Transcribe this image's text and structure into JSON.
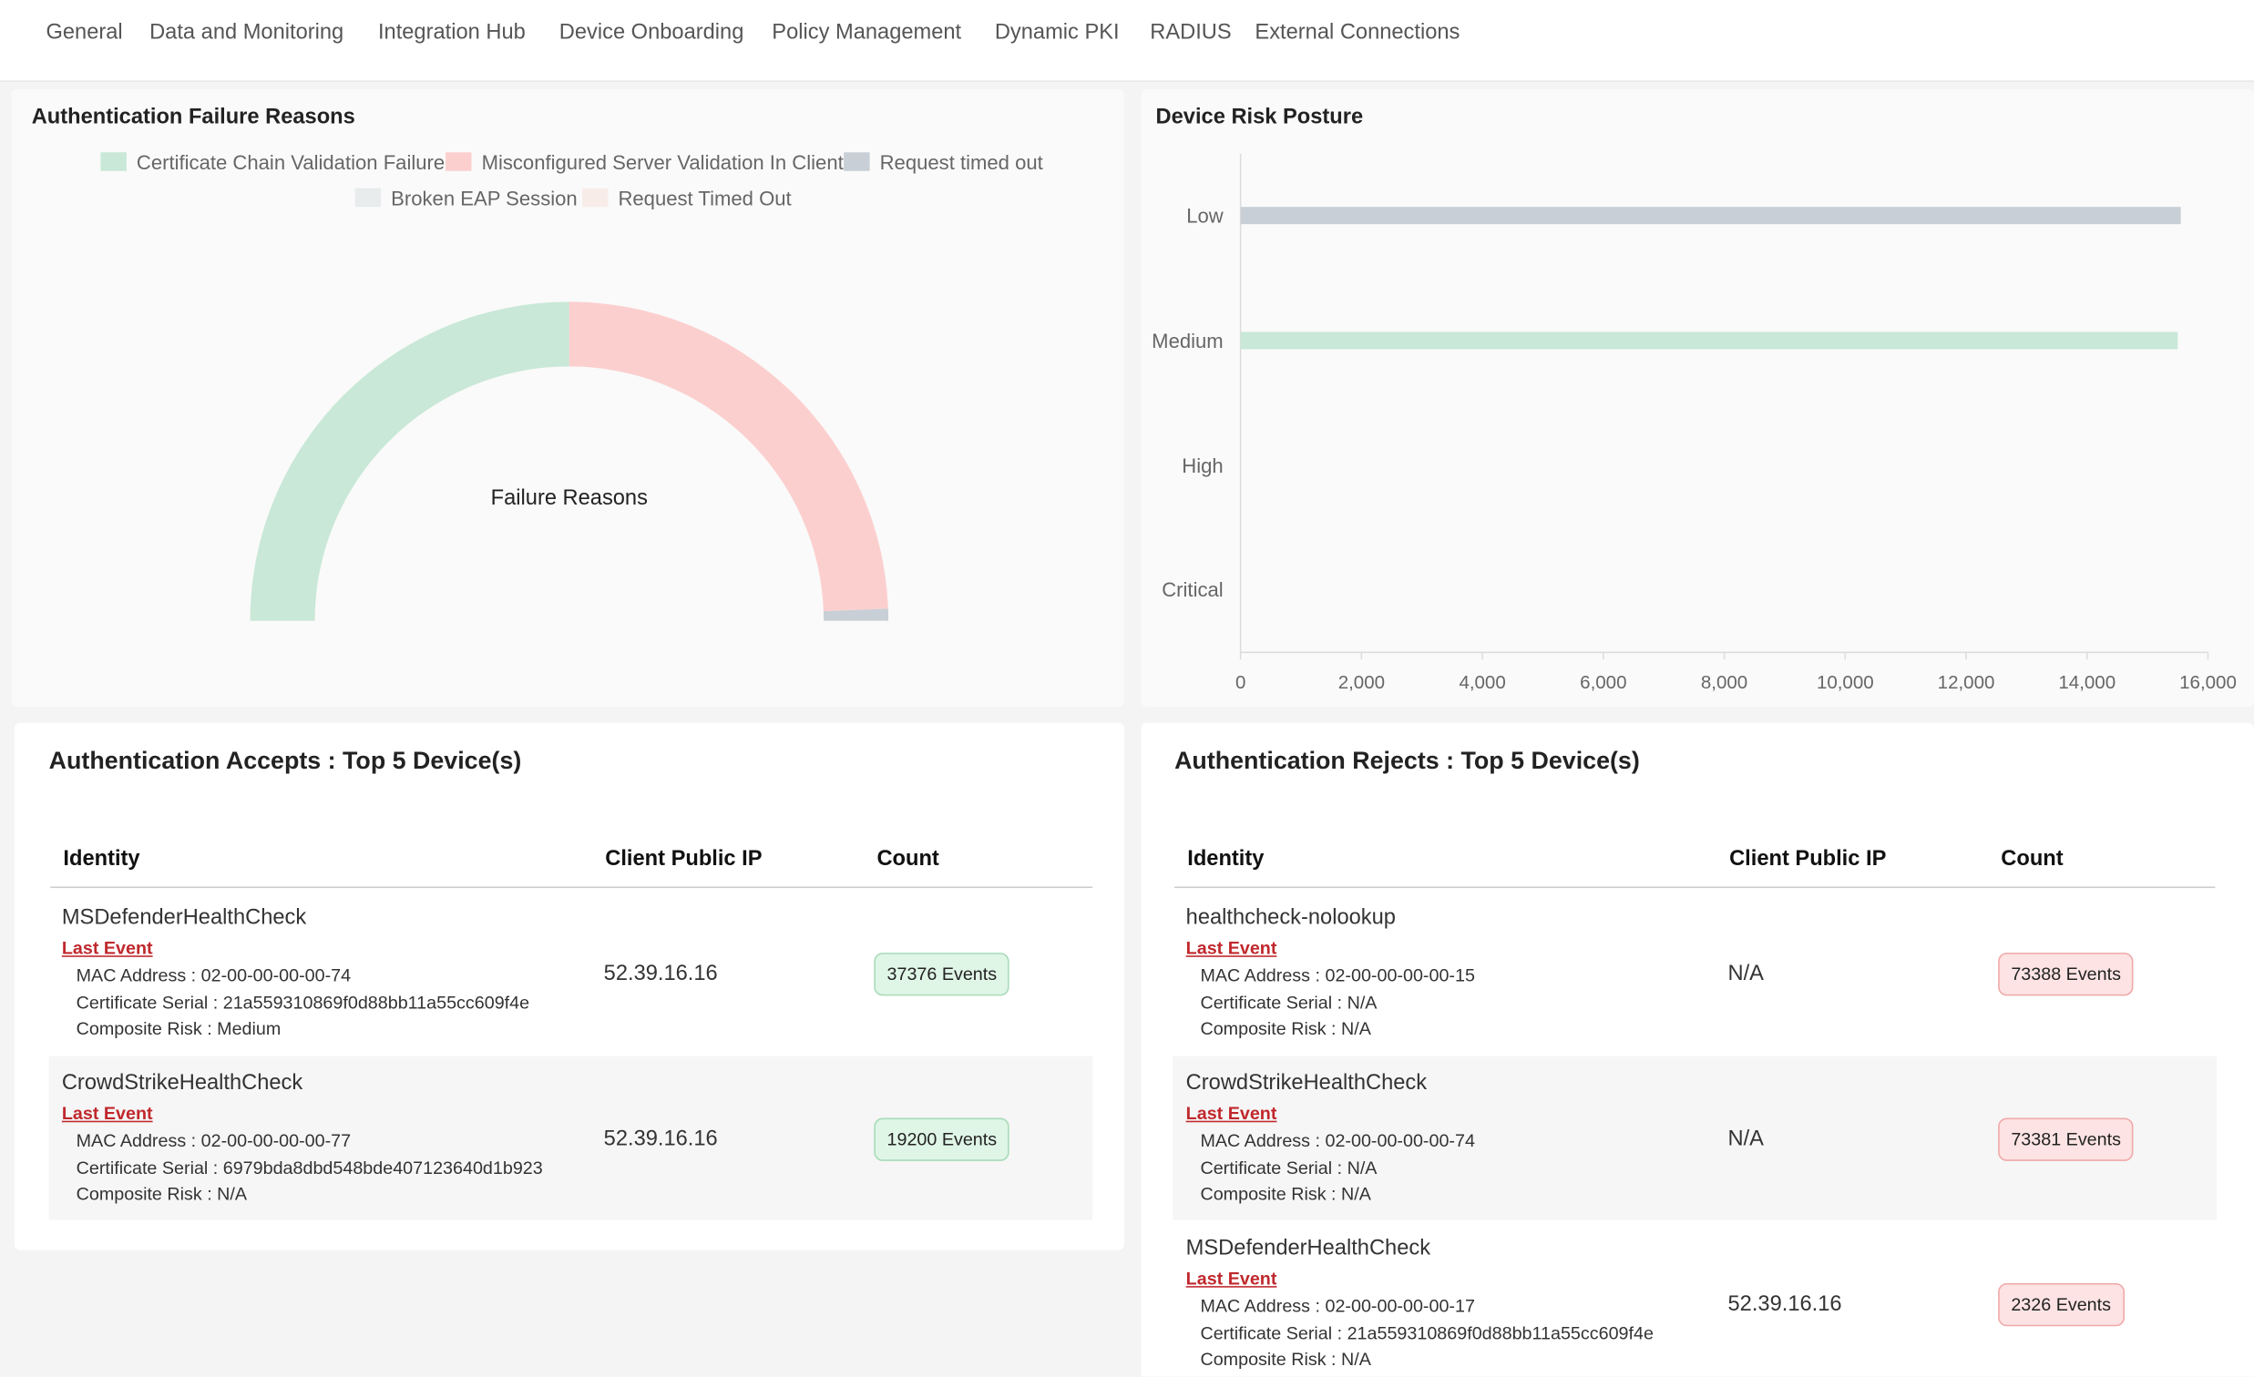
{
  "nav": {
    "tabs": [
      "General",
      "Data and Monitoring",
      "Integration Hub",
      "Device Onboarding",
      "Policy Management",
      "Dynamic PKI",
      "RADIUS",
      "External Connections"
    ]
  },
  "charts": [
    {
      "type": "donut",
      "title": "Authentication Failure Reasons",
      "center_label": "Failure Reasons",
      "categories": [
        "Certificate Chain Validation Failure",
        "Misconfigured Server Validation In Client",
        "Request timed out",
        "Broken EAP Session",
        "Request Timed Out"
      ],
      "values": [
        50,
        48.8,
        1.2,
        0,
        0
      ],
      "colors": [
        "#c9e8d7",
        "#fccfcf",
        "#c8cfd6",
        "#e9ecec",
        "#f8ece9"
      ]
    },
    {
      "type": "hbar",
      "title": "Device Risk Posture",
      "categories": [
        "Low",
        "Medium",
        "High",
        "Critical"
      ],
      "values": [
        15550,
        15500,
        0,
        0
      ],
      "colors": [
        "#c8cfd6",
        "#c9e8d7",
        "#c8cfd6",
        "#c8cfd6"
      ],
      "xlim": [
        0,
        16000
      ],
      "xticks": [
        0,
        {
          "value": 2000,
          "label": "2,000"
        },
        {
          "value": 4000,
          "label": "4,000"
        },
        {
          "value": 6000,
          "label": "6,000"
        },
        {
          "value": 8000,
          "label": "8,000"
        },
        {
          "value": 10000,
          "label": "10,000"
        },
        {
          "value": 12000,
          "label": "12,000"
        },
        {
          "value": 14000,
          "label": "14,000"
        },
        {
          "value": 16000,
          "label": "16,000"
        }
      ]
    }
  ],
  "tables": [
    {
      "title": "Authentication Accepts : Top 5 Device(s)",
      "kind": "accept",
      "columns": [
        "Identity",
        "Client Public IP",
        "Count"
      ],
      "rows": [
        {
          "identity": "MSDefenderHealthCheck",
          "link": "Last Event",
          "details": [
            "MAC Address : 02-00-00-00-00-74",
            "Certificate Serial : 21a559310869f0d88bb11a55cc609f4e",
            "Composite Risk : Medium"
          ],
          "ip": "52.39.16.16",
          "count": "37376 Events"
        },
        {
          "identity": "CrowdStrikeHealthCheck",
          "link": "Last Event",
          "details": [
            "MAC Address : 02-00-00-00-00-77",
            "Certificate Serial : 6979bda8dbd548bde407123640d1b923",
            "Composite Risk : N/A"
          ],
          "ip": "52.39.16.16",
          "count": "19200 Events"
        }
      ]
    },
    {
      "title": "Authentication Rejects : Top 5 Device(s)",
      "kind": "reject",
      "columns": [
        "Identity",
        "Client Public IP",
        "Count"
      ],
      "rows": [
        {
          "identity": "healthcheck-nolookup",
          "link": "Last Event",
          "details": [
            "MAC Address : 02-00-00-00-00-15",
            "Certificate Serial : N/A",
            "Composite Risk : N/A"
          ],
          "ip": "N/A",
          "count": "73388 Events"
        },
        {
          "identity": "CrowdStrikeHealthCheck",
          "link": "Last Event",
          "details": [
            "MAC Address : 02-00-00-00-00-74",
            "Certificate Serial : N/A",
            "Composite Risk : N/A"
          ],
          "ip": "N/A",
          "count": "73381 Events"
        },
        {
          "identity": "MSDefenderHealthCheck",
          "link": "Last Event",
          "details": [
            "MAC Address : 02-00-00-00-00-17",
            "Certificate Serial : 21a559310869f0d88bb11a55cc609f4e",
            "Composite Risk : N/A"
          ],
          "ip": "52.39.16.16",
          "count": "2326 Events"
        }
      ]
    }
  ]
}
